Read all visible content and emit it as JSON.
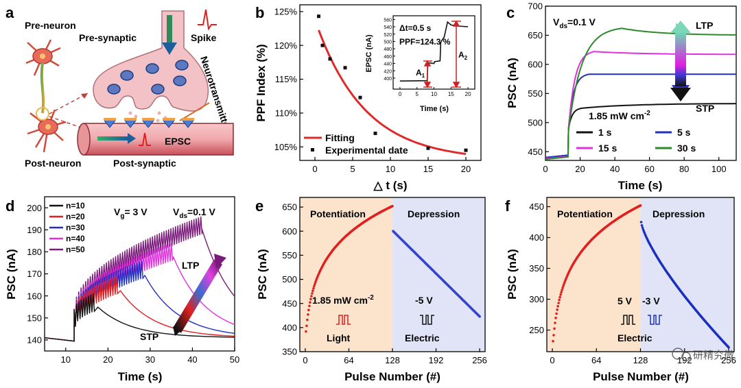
{
  "panel_a": {
    "label": "a",
    "texts": {
      "pre_neuron": "Pre-neuron",
      "pre_synaptic": "Pre-synaptic",
      "spike": "Spike",
      "neurotransmitter": "Neurotransmitter",
      "epsc": "EPSC",
      "post_neuron": "Post-neuron",
      "post_synaptic": "Post-synaptic"
    },
    "colors": {
      "terminal": "#f3c2c6",
      "vesicle": "#5b78c0",
      "spike": "#e02020",
      "arrow": "#2e8b57"
    }
  },
  "chart_data": [
    {
      "panel": "b",
      "type": "scatter",
      "xlabel": "△ t (s)",
      "ylabel": "PPF Index (%)",
      "xlim": [
        -2,
        22
      ],
      "ylim": [
        103,
        126
      ],
      "xticks": [
        "0",
        "5",
        "10",
        "15",
        "20"
      ],
      "yticks": [
        "105%",
        "110%",
        "115%",
        "120%",
        "125%"
      ],
      "series": [
        {
          "name": "Experimental date",
          "x": [
            0.5,
            1,
            2,
            4,
            6,
            8,
            15,
            20
          ],
          "y": [
            124.3,
            120,
            118,
            116.7,
            112.3,
            107,
            104.8,
            104.5
          ],
          "color": "#111111"
        },
        {
          "name": "Fitting",
          "model": "exp",
          "y0": 103,
          "A": 20.8,
          "tau": 6.5,
          "xrange": [
            0.5,
            20
          ],
          "color": "#e02a2a"
        }
      ],
      "legend": [
        "Fitting",
        "Experimental date"
      ],
      "legend_position": "bottom-left",
      "inset": {
        "xlabel": "Time (s)",
        "ylabel": "EPSC (nA)",
        "xlim": [
          -2,
          22
        ],
        "ylim": [
          370,
          570
        ],
        "xticks": [
          "0",
          "5",
          "10",
          "15",
          "20"
        ],
        "yticks": [
          "400",
          "420",
          "440",
          "460",
          "480",
          "500",
          "520",
          "540",
          "560"
        ],
        "annotations": [
          "Δt=0.5 s",
          "PPF=124.3 %",
          "A",
          "A"
        ],
        "subscripts": [
          "1",
          "2"
        ],
        "trace": {
          "x": [
            0,
            8,
            8.2,
            10,
            10.2,
            11.8,
            12,
            13,
            14,
            15,
            17,
            20
          ],
          "y": [
            392,
            393,
            442,
            440,
            445,
            447,
            498,
            512,
            553,
            545,
            542,
            540
          ]
        }
      }
    },
    {
      "panel": "c",
      "type": "line",
      "xlabel": "Time (s)",
      "ylabel": "PSC (nA)",
      "xlim": [
        0,
        110
      ],
      "ylim": [
        435,
        700
      ],
      "xticks": [
        "0",
        "20",
        "40",
        "60",
        "80",
        "100"
      ],
      "yticks": [
        "450",
        "500",
        "550",
        "600",
        "650",
        "700"
      ],
      "annotations": [
        "V",
        "ds",
        "=0.1 V",
        "LTP",
        "STP",
        "1.85 mW cm",
        "-2"
      ],
      "series": [
        {
          "name": "1 s",
          "color": "#111111",
          "base": 440,
          "plateau": 525,
          "t_end": 22,
          "final": 533
        },
        {
          "name": "5 s",
          "color": "#1f2fc0",
          "base": 440,
          "plateau": 583,
          "t_end": 25,
          "final": 583
        },
        {
          "name": "15 s",
          "color": "#e030e0",
          "base": 438,
          "plateau": 622,
          "t_end": 28,
          "final": 617
        },
        {
          "name": "30 s",
          "color": "#2a8a2a",
          "base": 437,
          "plateau": 662,
          "t_end": 44,
          "final": 650
        }
      ],
      "legend": [
        "1 s",
        "5 s",
        "15 s",
        "30 s"
      ],
      "legend_position": "bottom-right"
    },
    {
      "panel": "d",
      "type": "line",
      "xlabel": "Time (s)",
      "ylabel": "PSC (nA)",
      "xlim": [
        5,
        50
      ],
      "ylim": [
        135,
        205
      ],
      "xticks": [
        "10",
        "20",
        "30",
        "40",
        "50"
      ],
      "yticks": [
        "140",
        "150",
        "160",
        "170",
        "180",
        "190",
        "200"
      ],
      "annotations": [
        "V",
        "g",
        "= 3 V",
        "V",
        "ds",
        "=0.1 V",
        "LTP",
        "STP"
      ],
      "series": [
        {
          "name": "n=10",
          "color": "#111111",
          "peak": 157,
          "t_end": 16.5
        },
        {
          "name": "n=20",
          "color": "#e02020",
          "peak": 165,
          "t_end": 22
        },
        {
          "name": "n=30",
          "color": "#1f2fc0",
          "peak": 172,
          "t_end": 28
        },
        {
          "name": "n=40",
          "color": "#e030e0",
          "peak": 180,
          "t_end": 35
        },
        {
          "name": "n=50",
          "color": "#7a1a7a",
          "peak": 192,
          "t_end": 42
        }
      ],
      "legend": [
        "n=10",
        "n=20",
        "n=30",
        "n=40",
        "n=50"
      ],
      "legend_position": "top-left"
    },
    {
      "panel": "e",
      "type": "scatter",
      "xlabel": "Pulse Number (#)",
      "ylabel": "PSC (nA)",
      "xlim": [
        -8,
        264
      ],
      "ylim": [
        350,
        670
      ],
      "xticks": [
        "0",
        "64",
        "128",
        "192",
        "256"
      ],
      "yticks": [
        "350",
        "400",
        "450",
        "500",
        "550",
        "600",
        "650"
      ],
      "regions": [
        "Potentiation",
        "Depression"
      ],
      "region_split": 128,
      "annotations": [
        "1.85 mW cm",
        "-2",
        "-5 V",
        "Light",
        "Electric"
      ],
      "potentiation": {
        "start": 392,
        "end": 652,
        "color": "#e02020"
      },
      "depression": {
        "start": 600,
        "end": 423,
        "color": "#3344cc"
      }
    },
    {
      "panel": "f",
      "type": "scatter",
      "xlabel": "Pulse Number (#)",
      "ylabel": "PSC (nA)",
      "xlim": [
        -8,
        264
      ],
      "ylim": [
        215,
        465
      ],
      "xticks": [
        "0",
        "64",
        "128",
        "192",
        "256"
      ],
      "yticks": [
        "250",
        "300",
        "350",
        "400",
        "450"
      ],
      "regions": [
        "Potentiation",
        "Depression"
      ],
      "region_split": 128,
      "annotations": [
        "5 V",
        "-3 V",
        "Electric"
      ],
      "potentiation": {
        "start": 232,
        "end": 452,
        "color": "#e02020"
      },
      "depression": {
        "start": 425,
        "end": 222,
        "color": "#1a2fc0"
      }
    }
  ],
  "watermark": "研精究微",
  "colors": {
    "potentiation_bg": "#fbe3cc",
    "depression_bg": "#e1e4f7"
  }
}
